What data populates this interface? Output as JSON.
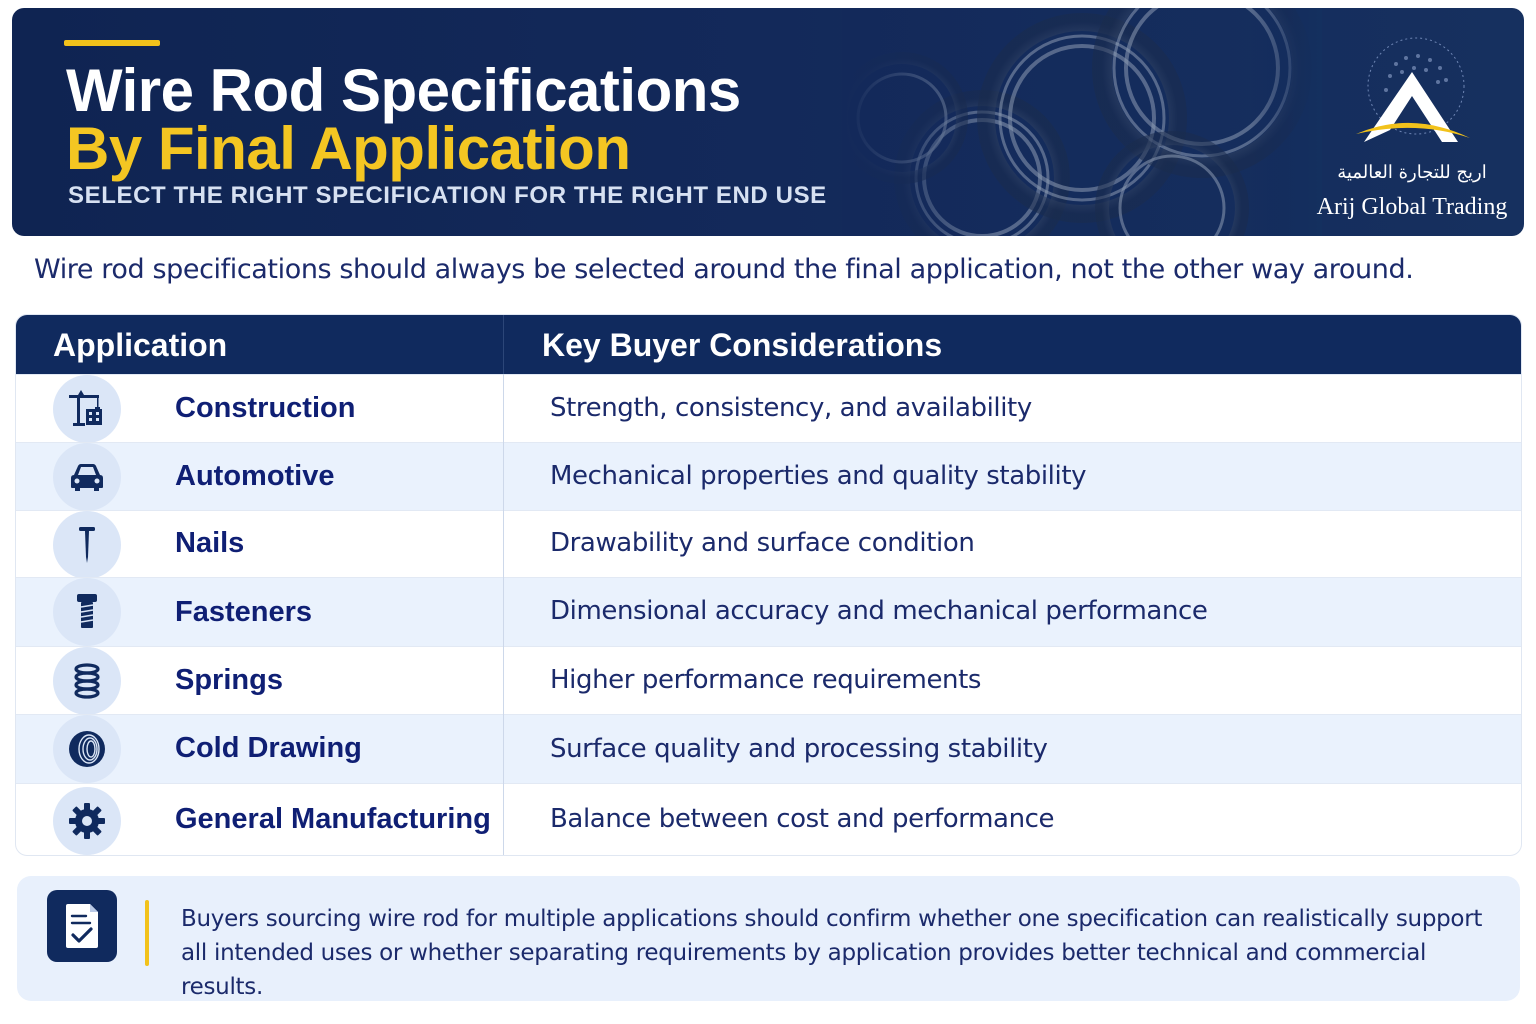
{
  "header": {
    "title_line1": "Wire Rod Specifications",
    "title_line2": "By Final Application",
    "subtitle": "SELECT THE RIGHT SPECIFICATION FOR THE RIGHT END USE",
    "logo": {
      "arabic_name": "اريج للتجارة العالمية",
      "english_name": "Arij Global Trading"
    }
  },
  "intro": "Wire rod specifications should always be selected around the final application, not the other way around.",
  "table": {
    "headers": {
      "application": "Application",
      "considerations": "Key Buyer Considerations"
    },
    "rows": [
      {
        "icon": "crane-building-icon",
        "application": "Construction",
        "consideration": "Strength, consistency, and availability"
      },
      {
        "icon": "car-icon",
        "application": "Automotive",
        "consideration": "Mechanical properties and quality stability"
      },
      {
        "icon": "nail-icon",
        "application": "Nails",
        "consideration": "Drawability and surface condition"
      },
      {
        "icon": "bolt-icon",
        "application": "Fasteners",
        "consideration": "Dimensional accuracy and mechanical performance"
      },
      {
        "icon": "spring-icon",
        "application": "Springs",
        "consideration": "Higher performance requirements"
      },
      {
        "icon": "wire-coil-icon",
        "application": "Cold Drawing",
        "consideration": "Surface quality and processing stability"
      },
      {
        "icon": "gear-icon",
        "application": "General Manufacturing",
        "consideration": "Balance between cost and performance"
      }
    ]
  },
  "note": {
    "icon": "checklist-document-icon",
    "text": "Buyers sourcing wire rod for multiple applications should confirm whether one specification can realistically support all intended uses or whether separating requirements by application provides better technical and commercial results."
  },
  "colors": {
    "navy": "#102a5e",
    "accent_yellow": "#f2c21b",
    "text_navy": "#0f1f74",
    "row_alt": "#eaf2fd"
  }
}
